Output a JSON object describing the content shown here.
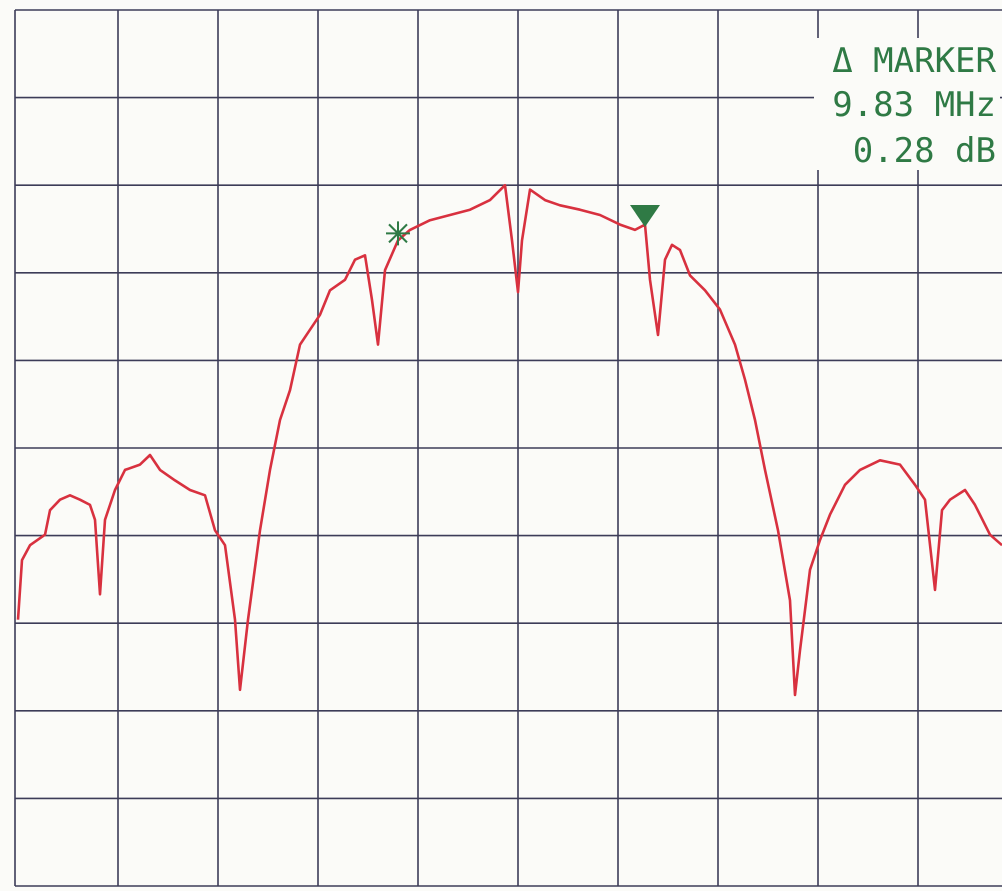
{
  "chart_data": {
    "type": "line",
    "color": "#d8313f",
    "xlim": [
      0,
      10
    ],
    "ylim": [
      0,
      10
    ],
    "x": [
      0,
      0.04,
      0.12,
      0.27,
      0.32,
      0.42,
      0.52,
      0.62,
      0.72,
      0.77,
      0.82,
      0.87,
      0.97,
      1.07,
      1.22,
      1.32,
      1.42,
      1.57,
      1.72,
      1.87,
      1.97,
      2.07,
      2.17,
      2.22,
      2.3,
      2.42,
      2.52,
      2.62,
      2.72,
      2.82,
      2.92,
      3.02,
      3.12,
      3.27,
      3.37,
      3.47,
      3.54,
      3.6,
      3.67,
      3.8,
      3.92,
      4.12,
      4.32,
      4.52,
      4.72,
      4.87,
      4.94,
      5.0,
      5.04,
      5.12,
      5.27,
      5.42,
      5.62,
      5.82,
      6.02,
      6.17,
      6.27,
      6.32,
      6.4,
      6.47,
      6.54,
      6.62,
      6.72,
      6.87,
      7.02,
      7.17,
      7.27,
      7.37,
      7.47,
      7.6,
      7.72,
      7.77,
      7.82,
      7.92,
      8.02,
      8.12,
      8.27,
      8.42,
      8.62,
      8.82,
      8.97,
      9.07,
      9.17,
      9.24,
      9.32,
      9.47,
      9.57,
      9.72,
      9.84
    ],
    "values": [
      3.04,
      3.72,
      3.89,
      4.01,
      4.29,
      4.41,
      4.46,
      4.41,
      4.35,
      4.18,
      3.33,
      4.18,
      4.52,
      4.75,
      4.81,
      4.92,
      4.75,
      4.63,
      4.52,
      4.46,
      4.06,
      3.89,
      3.04,
      2.24,
      3.04,
      4.06,
      4.75,
      5.32,
      5.66,
      6.18,
      6.35,
      6.52,
      6.8,
      6.92,
      7.15,
      7.2,
      6.69,
      6.18,
      7.03,
      7.37,
      7.49,
      7.6,
      7.66,
      7.72,
      7.83,
      8.0,
      7.37,
      6.78,
      7.37,
      7.95,
      7.83,
      7.77,
      7.72,
      7.66,
      7.55,
      7.49,
      7.55,
      6.92,
      6.29,
      7.15,
      7.32,
      7.26,
      6.97,
      6.8,
      6.58,
      6.18,
      5.78,
      5.32,
      4.75,
      4.06,
      3.26,
      2.18,
      2.69,
      3.61,
      3.95,
      4.24,
      4.58,
      4.75,
      4.86,
      4.81,
      4.58,
      4.41,
      3.38,
      4.29,
      4.41,
      4.52,
      4.35,
      4.01,
      3.89
    ],
    "markers": [
      {
        "shape": "star",
        "color": "#2f7a45",
        "x": 3.8,
        "y": 7.45
      },
      {
        "shape": "triangle",
        "color": "#2f7a45",
        "x": 6.27,
        "y": 7.66
      }
    ],
    "annotation": {
      "color": "#2f7a45",
      "lines": [
        "Δ MARKER",
        "9.83 MHz",
        "0.28 dB"
      ]
    }
  }
}
